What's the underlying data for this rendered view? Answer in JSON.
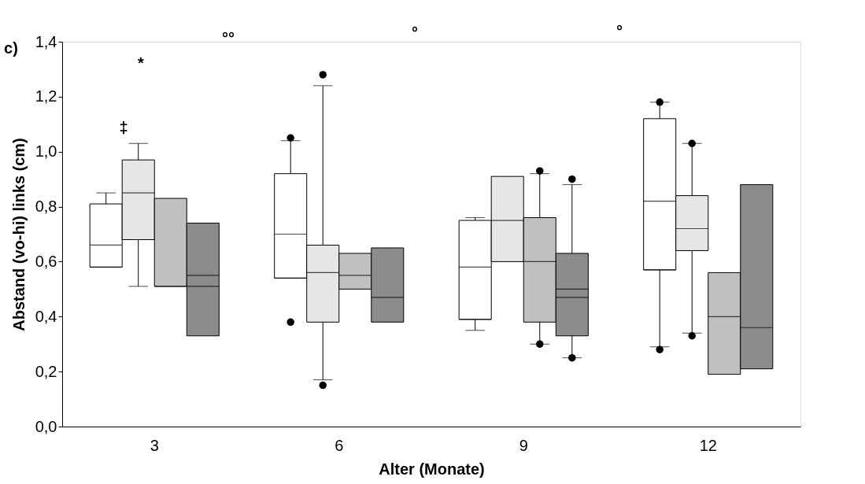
{
  "chart_data": {
    "type": "box",
    "xlabel": "Alter (Monate)",
    "ylabel": "Abstand (vo-hi) links (cm)",
    "categories": [
      "3",
      "6",
      "9",
      "12"
    ],
    "series": [
      {
        "color": "#ffffff",
        "boxes": [
          {
            "low": 0.58,
            "q1": 0.58,
            "median": 0.58,
            "q3": 0.81,
            "high": 0.85,
            "mean": 0.66
          },
          {
            "low": 0.54,
            "q1": 0.54,
            "median": 0.54,
            "q3": 0.92,
            "high": 1.04,
            "mean": 0.7,
            "outliers": [
              1.05,
              0.38
            ]
          },
          {
            "low": 0.35,
            "q1": 0.39,
            "median": 0.39,
            "q3": 0.75,
            "high": 0.76,
            "mean": 0.58
          },
          {
            "low": 0.29,
            "q1": 0.57,
            "median": 0.57,
            "q3": 1.12,
            "high": 1.18,
            "mean": 0.82,
            "outliers": [
              1.18,
              0.28
            ]
          }
        ]
      },
      {
        "color": "#e6e6e6",
        "boxes": [
          {
            "low": 0.51,
            "q1": 0.68,
            "median": 0.85,
            "q3": 0.97,
            "high": 1.03
          },
          {
            "low": 0.17,
            "q1": 0.38,
            "median": 0.56,
            "q3": 0.66,
            "high": 1.24,
            "outliers": [
              1.28,
              0.15
            ]
          },
          {
            "low": 0.6,
            "q1": 0.6,
            "median": 0.75,
            "q3": 0.91,
            "high": 0.91
          },
          {
            "low": 0.34,
            "q1": 0.64,
            "median": 0.72,
            "q3": 0.84,
            "high": 1.03,
            "outliers": [
              1.03,
              0.33
            ]
          }
        ]
      },
      {
        "color": "#c0c0c0",
        "boxes": [
          {
            "low": 0.51,
            "q1": 0.51,
            "median": 0.51,
            "q3": 0.83,
            "high": 0.83
          },
          {
            "low": 0.5,
            "q1": 0.5,
            "median": 0.55,
            "q3": 0.63,
            "high": 0.63
          },
          {
            "low": 0.3,
            "q1": 0.38,
            "median": 0.6,
            "q3": 0.76,
            "high": 0.92,
            "outliers": [
              0.93,
              0.3
            ]
          },
          {
            "low": 0.19,
            "q1": 0.19,
            "median": 0.4,
            "q3": 0.56,
            "high": 0.56
          }
        ]
      },
      {
        "color": "#8c8c8c",
        "boxes": [
          {
            "low": 0.33,
            "q1": 0.33,
            "median": 0.51,
            "q3": 0.74,
            "high": 0.74,
            "mean": 0.55
          },
          {
            "low": 0.38,
            "q1": 0.38,
            "median": 0.47,
            "q3": 0.65,
            "high": 0.65
          },
          {
            "low": 0.25,
            "q1": 0.33,
            "median": 0.47,
            "q3": 0.63,
            "high": 0.88,
            "mean": 0.5,
            "outliers": [
              0.9,
              0.25
            ]
          },
          {
            "low": 0.21,
            "q1": 0.21,
            "median": 0.36,
            "q3": 0.88,
            "high": 0.88
          }
        ]
      }
    ],
    "ylim": [
      0,
      1.4
    ],
    "yticks": [
      {
        "value": 0,
        "label": "0,0"
      },
      {
        "value": 0.2,
        "label": "0,2"
      },
      {
        "value": 0.4,
        "label": "0,4"
      },
      {
        "value": 0.6,
        "label": "0,6"
      },
      {
        "value": 0.8,
        "label": "0,8"
      },
      {
        "value": 1.0,
        "label": "1,0"
      },
      {
        "value": 1.2,
        "label": "1,2"
      },
      {
        "value": 1.4,
        "label": "1,4"
      }
    ],
    "annotations": [
      "c)",
      "°°",
      "°",
      "°",
      "*",
      "‡"
    ],
    "grid": false
  }
}
